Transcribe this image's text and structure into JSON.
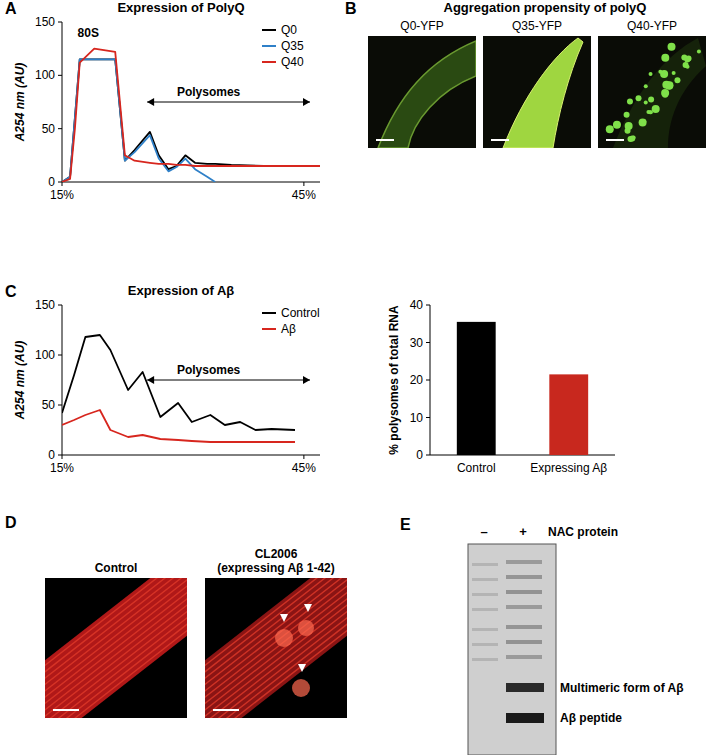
{
  "chart_data": [
    {
      "type": "line",
      "panel": "A",
      "title": "Expression of PolyQ",
      "y_label": "A254 nm (AU)",
      "x": [
        15,
        16,
        16.6,
        17.2,
        19,
        21.6,
        22.8,
        24,
        25.9,
        27,
        28.2,
        29.2,
        30.3,
        31.5,
        33,
        34,
        36,
        40,
        45,
        47
      ],
      "series": [
        {
          "name": "Q0",
          "color": "#000000",
          "values": [
            0,
            5,
            60,
            115,
            115,
            115,
            20,
            30,
            47,
            25,
            12,
            15,
            25,
            18,
            17,
            17,
            16,
            15,
            15,
            15
          ]
        },
        {
          "name": "Q35",
          "color": "#2f80c8",
          "values": [
            0,
            5,
            60,
            115,
            115,
            115,
            20,
            28,
            44,
            22,
            10,
            14,
            22,
            12,
            5,
            0,
            null,
            null,
            null,
            null
          ]
        },
        {
          "name": "Q40",
          "color": "#d7261e",
          "values": [
            0,
            3,
            50,
            112,
            125,
            122,
            25,
            20,
            18,
            17,
            17,
            16,
            16,
            15,
            15,
            15,
            15,
            15,
            15,
            15
          ]
        }
      ],
      "xlim": [
        15,
        47
      ],
      "xticks": [
        {
          "value": 15,
          "label": "15%"
        },
        {
          "value": 45,
          "label": "45%"
        }
      ],
      "ylim": [
        0,
        150
      ],
      "yticks": [
        0,
        50,
        100,
        150
      ],
      "annotations": [
        "80S"
      ],
      "range_label": "Polysomes",
      "legend": "upper right"
    },
    {
      "type": "line",
      "panel": "C",
      "title": "Expression of Aβ",
      "y_label": "A254 nm (AU)",
      "x": [
        15,
        16.5,
        17.9,
        19.7,
        21,
        23.2,
        25,
        27.2,
        29.4,
        31.1,
        33.4,
        35.2,
        37.1,
        39,
        41,
        43.9
      ],
      "series": [
        {
          "name": "Control",
          "color": "#000000",
          "values": [
            42,
            80,
            118,
            120,
            105,
            65,
            83,
            38,
            52,
            33,
            40,
            30,
            33,
            25,
            26,
            25
          ]
        },
        {
          "name": "Aβ",
          "color": "#d7261e",
          "values": [
            30,
            35,
            40,
            45,
            25,
            18,
            20,
            16,
            15,
            14,
            13,
            13,
            13,
            13,
            13,
            13
          ]
        }
      ],
      "xlim": [
        15,
        47
      ],
      "xticks": [
        {
          "value": 15,
          "label": "15%"
        },
        {
          "value": 45,
          "label": "45%"
        }
      ],
      "ylim": [
        0,
        150
      ],
      "yticks": [
        0,
        50,
        100,
        150
      ],
      "range_label": "Polysomes",
      "legend": "upper right"
    },
    {
      "type": "bar",
      "y_label": "% polysomes of total RNA",
      "categories": [
        "Control",
        "Expressing Aβ"
      ],
      "values": [
        35.5,
        21.5
      ],
      "colors": [
        "#000000",
        "#c8281e"
      ],
      "ylim": [
        0,
        40
      ],
      "yticks": [
        0,
        10,
        20,
        30,
        40
      ]
    }
  ],
  "panel_b": {
    "label": "B",
    "title": "Aggregation propensity of polyQ",
    "images": [
      "Q0-YFP",
      "Q35-YFP",
      "Q40-YFP"
    ]
  },
  "panel_d": {
    "label": "D",
    "images": [
      {
        "label": "Control"
      },
      {
        "label": "CL2006",
        "sublabel": "(expressing Aβ 1-42)"
      }
    ]
  },
  "panel_e": {
    "label": "E",
    "lanes": [
      "–",
      "+"
    ],
    "lane_title": "NAC protein",
    "bands": [
      "Multimeric form of Aβ",
      "Aβ peptide"
    ]
  }
}
